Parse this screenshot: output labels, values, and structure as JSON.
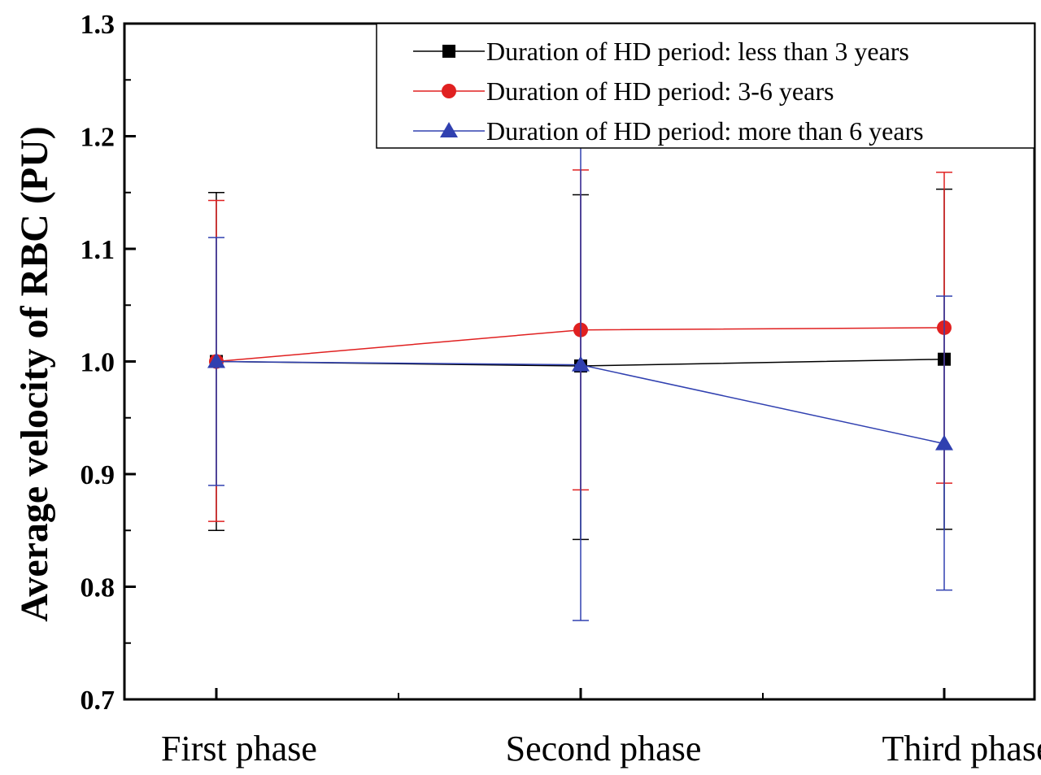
{
  "chart_data": {
    "type": "line",
    "title": "",
    "xlabel": "",
    "ylabel": "Average velocity of RBC (PU)",
    "categories": [
      "First phase",
      "Second phase",
      "Third phase"
    ],
    "ylim": [
      0.7,
      1.3
    ],
    "yticks": [
      "0.7",
      "0.8",
      "0.9",
      "1.0",
      "1.1",
      "1.2",
      "1.3"
    ],
    "grid": false,
    "legend_placement": "top-right",
    "series": [
      {
        "name": "Duration of HD period: less than 3 years",
        "color": "#000000",
        "marker": "square",
        "values": [
          1.0,
          0.996,
          1.002
        ],
        "err_upper": [
          1.15,
          1.148,
          1.153
        ],
        "err_lower": [
          0.85,
          0.842,
          0.851
        ]
      },
      {
        "name": "Duration of HD period: 3-6 years",
        "color": "#e02020",
        "marker": "circle",
        "values": [
          1.0,
          1.028,
          1.03
        ],
        "err_upper": [
          1.143,
          1.17,
          1.168
        ],
        "err_lower": [
          0.858,
          0.886,
          0.892
        ]
      },
      {
        "name": "Duration of HD period: more than 6 years",
        "color": "#3040b0",
        "marker": "triangle",
        "values": [
          1.0,
          0.997,
          0.927
        ],
        "err_upper": [
          1.11,
          1.224,
          1.058
        ],
        "err_lower": [
          0.89,
          0.77,
          0.797
        ]
      }
    ]
  }
}
